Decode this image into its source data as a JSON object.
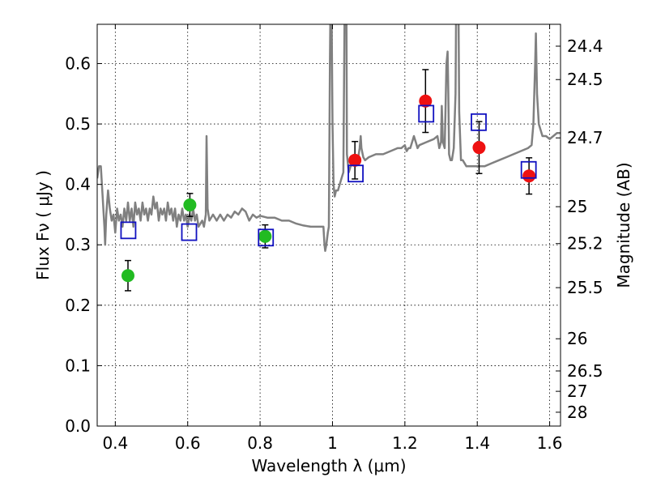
{
  "chart_data": {
    "type": "scatter",
    "title": "",
    "xlabel": "Wavelength  λ (μm)",
    "ylabel": "Flux  Fν  ( μJy )",
    "ylabel_right": "Magnitude (AB)",
    "xlim": [
      0.35,
      1.63
    ],
    "ylim": [
      0.0,
      0.665
    ],
    "grid": true,
    "grid_style": "dotted",
    "x_ticks": [
      0.4,
      0.6,
      0.8,
      1.0,
      1.2,
      1.4,
      1.6
    ],
    "x_tick_labels": [
      "0.4",
      "0.6",
      "0.8",
      "1",
      "1.2",
      "1.4",
      "1.6"
    ],
    "y_ticks": [
      0.0,
      0.1,
      0.2,
      0.3,
      0.4,
      0.5,
      0.6
    ],
    "y_tick_labels": [
      "0.0",
      "0.1",
      "0.2",
      "0.3",
      "0.4",
      "0.5",
      "0.6"
    ],
    "right_ticks": [
      {
        "label": "24.4",
        "flux": 0.6288
      },
      {
        "label": "24.5",
        "flux": 0.5735
      },
      {
        "label": "24.7",
        "flux": 0.477
      },
      {
        "label": "25",
        "flux": 0.3631
      },
      {
        "label": "25.2",
        "flux": 0.302
      },
      {
        "label": "25.5",
        "flux": 0.2291
      },
      {
        "label": "26",
        "flux": 0.1445
      },
      {
        "label": "26.5",
        "flux": 0.0912
      },
      {
        "label": "27",
        "flux": 0.0575
      },
      {
        "label": "28",
        "flux": 0.0229
      }
    ],
    "colors": {
      "sed": "#808080",
      "green": "#22bb22",
      "red": "#ee1111",
      "square": "#1010c0",
      "error": "#000000"
    },
    "series": [
      {
        "kind": "line",
        "points": [
          [
            0.35,
            0.41
          ],
          [
            0.355,
            0.43
          ],
          [
            0.36,
            0.43
          ],
          [
            0.365,
            0.38
          ],
          [
            0.37,
            0.33
          ],
          [
            0.372,
            0.3
          ],
          [
            0.375,
            0.35
          ],
          [
            0.38,
            0.39
          ],
          [
            0.385,
            0.36
          ],
          [
            0.39,
            0.34
          ],
          [
            0.395,
            0.35
          ],
          [
            0.4,
            0.32
          ],
          [
            0.405,
            0.36
          ],
          [
            0.41,
            0.34
          ],
          [
            0.415,
            0.35
          ],
          [
            0.42,
            0.33
          ],
          [
            0.425,
            0.36
          ],
          [
            0.43,
            0.34
          ],
          [
            0.435,
            0.37
          ],
          [
            0.44,
            0.34
          ],
          [
            0.445,
            0.36
          ],
          [
            0.45,
            0.33
          ],
          [
            0.455,
            0.37
          ],
          [
            0.46,
            0.35
          ],
          [
            0.465,
            0.36
          ],
          [
            0.47,
            0.34
          ],
          [
            0.475,
            0.37
          ],
          [
            0.48,
            0.35
          ],
          [
            0.485,
            0.36
          ],
          [
            0.49,
            0.34
          ],
          [
            0.495,
            0.36
          ],
          [
            0.5,
            0.35
          ],
          [
            0.505,
            0.38
          ],
          [
            0.51,
            0.36
          ],
          [
            0.515,
            0.37
          ],
          [
            0.52,
            0.34
          ],
          [
            0.525,
            0.36
          ],
          [
            0.53,
            0.35
          ],
          [
            0.535,
            0.36
          ],
          [
            0.54,
            0.34
          ],
          [
            0.545,
            0.37
          ],
          [
            0.55,
            0.35
          ],
          [
            0.555,
            0.36
          ],
          [
            0.56,
            0.34
          ],
          [
            0.565,
            0.36
          ],
          [
            0.57,
            0.33
          ],
          [
            0.575,
            0.35
          ],
          [
            0.58,
            0.34
          ],
          [
            0.585,
            0.36
          ],
          [
            0.59,
            0.34
          ],
          [
            0.595,
            0.35
          ],
          [
            0.6,
            0.33
          ],
          [
            0.605,
            0.35
          ],
          [
            0.61,
            0.34
          ],
          [
            0.615,
            0.36
          ],
          [
            0.62,
            0.34
          ],
          [
            0.625,
            0.35
          ],
          [
            0.63,
            0.33
          ],
          [
            0.64,
            0.34
          ],
          [
            0.645,
            0.33
          ],
          [
            0.65,
            0.35
          ],
          [
            0.652,
            0.48
          ],
          [
            0.655,
            0.36
          ],
          [
            0.66,
            0.34
          ],
          [
            0.67,
            0.35
          ],
          [
            0.68,
            0.34
          ],
          [
            0.69,
            0.35
          ],
          [
            0.7,
            0.34
          ],
          [
            0.71,
            0.35
          ],
          [
            0.72,
            0.345
          ],
          [
            0.73,
            0.355
          ],
          [
            0.74,
            0.35
          ],
          [
            0.75,
            0.36
          ],
          [
            0.76,
            0.355
          ],
          [
            0.77,
            0.34
          ],
          [
            0.78,
            0.35
          ],
          [
            0.79,
            0.345
          ],
          [
            0.8,
            0.348
          ],
          [
            0.82,
            0.345
          ],
          [
            0.84,
            0.345
          ],
          [
            0.86,
            0.34
          ],
          [
            0.88,
            0.34
          ],
          [
            0.9,
            0.335
          ],
          [
            0.92,
            0.332
          ],
          [
            0.94,
            0.33
          ],
          [
            0.96,
            0.33
          ],
          [
            0.975,
            0.33
          ],
          [
            0.978,
            0.3
          ],
          [
            0.98,
            0.29
          ],
          [
            0.983,
            0.3
          ],
          [
            0.987,
            0.32
          ],
          [
            0.99,
            0.33
          ],
          [
            0.993,
            0.6
          ],
          [
            0.996,
            0.8
          ],
          [
            1.0,
            0.5
          ],
          [
            1.003,
            0.4
          ],
          [
            1.006,
            0.38
          ],
          [
            1.01,
            0.39
          ],
          [
            1.015,
            0.39
          ],
          [
            1.02,
            0.4
          ],
          [
            1.025,
            0.41
          ],
          [
            1.03,
            0.42
          ],
          [
            1.035,
            0.8
          ],
          [
            1.038,
            0.78
          ],
          [
            1.04,
            0.45
          ],
          [
            1.045,
            0.42
          ],
          [
            1.05,
            0.43
          ],
          [
            1.06,
            0.435
          ],
          [
            1.07,
            0.44
          ],
          [
            1.075,
            0.46
          ],
          [
            1.078,
            0.48
          ],
          [
            1.08,
            0.46
          ],
          [
            1.085,
            0.445
          ],
          [
            1.09,
            0.44
          ],
          [
            1.1,
            0.445
          ],
          [
            1.12,
            0.45
          ],
          [
            1.14,
            0.45
          ],
          [
            1.16,
            0.455
          ],
          [
            1.18,
            0.46
          ],
          [
            1.19,
            0.46
          ],
          [
            1.2,
            0.465
          ],
          [
            1.205,
            0.455
          ],
          [
            1.21,
            0.46
          ],
          [
            1.215,
            0.46
          ],
          [
            1.22,
            0.47
          ],
          [
            1.225,
            0.48
          ],
          [
            1.23,
            0.47
          ],
          [
            1.235,
            0.46
          ],
          [
            1.24,
            0.465
          ],
          [
            1.26,
            0.47
          ],
          [
            1.28,
            0.475
          ],
          [
            1.29,
            0.48
          ],
          [
            1.295,
            0.46
          ],
          [
            1.3,
            0.47
          ],
          [
            1.302,
            0.53
          ],
          [
            1.305,
            0.47
          ],
          [
            1.31,
            0.46
          ],
          [
            1.315,
            0.6
          ],
          [
            1.318,
            0.62
          ],
          [
            1.32,
            0.55
          ],
          [
            1.322,
            0.45
          ],
          [
            1.326,
            0.44
          ],
          [
            1.33,
            0.44
          ],
          [
            1.335,
            0.46
          ],
          [
            1.34,
            0.55
          ],
          [
            1.343,
            0.8
          ],
          [
            1.347,
            0.8
          ],
          [
            1.35,
            0.52
          ],
          [
            1.355,
            0.44
          ],
          [
            1.36,
            0.44
          ],
          [
            1.37,
            0.43
          ],
          [
            1.38,
            0.43
          ],
          [
            1.4,
            0.43
          ],
          [
            1.42,
            0.43
          ],
          [
            1.44,
            0.435
          ],
          [
            1.46,
            0.44
          ],
          [
            1.48,
            0.445
          ],
          [
            1.5,
            0.45
          ],
          [
            1.52,
            0.455
          ],
          [
            1.54,
            0.46
          ],
          [
            1.55,
            0.465
          ],
          [
            1.555,
            0.5
          ],
          [
            1.56,
            0.6
          ],
          [
            1.562,
            0.65
          ],
          [
            1.565,
            0.55
          ],
          [
            1.57,
            0.5
          ],
          [
            1.58,
            0.48
          ],
          [
            1.59,
            0.48
          ],
          [
            1.6,
            0.475
          ],
          [
            1.61,
            0.48
          ],
          [
            1.62,
            0.485
          ],
          [
            1.63,
            0.485
          ]
        ]
      },
      {
        "kind": "points",
        "marker": "green-circle",
        "points": [
          {
            "x": 0.435,
            "y": 0.249,
            "yerr": 0.025
          },
          {
            "x": 0.606,
            "y": 0.366,
            "yerr": 0.019
          },
          {
            "x": 0.814,
            "y": 0.314,
            "yerr": 0.019
          }
        ]
      },
      {
        "kind": "points",
        "marker": "red-circle",
        "points": [
          {
            "x": 1.062,
            "y": 0.44,
            "yerr": 0.031
          },
          {
            "x": 1.257,
            "y": 0.538,
            "yerr": 0.052
          },
          {
            "x": 1.405,
            "y": 0.461,
            "yerr": 0.043
          },
          {
            "x": 1.543,
            "y": 0.414,
            "yerr": 0.03
          }
        ]
      },
      {
        "kind": "points",
        "marker": "blue-square",
        "points": [
          {
            "x": 0.436,
            "y": 0.324
          },
          {
            "x": 0.604,
            "y": 0.321
          },
          {
            "x": 0.816,
            "y": 0.312
          },
          {
            "x": 1.064,
            "y": 0.418
          },
          {
            "x": 1.259,
            "y": 0.517
          },
          {
            "x": 1.404,
            "y": 0.503
          },
          {
            "x": 1.542,
            "y": 0.424
          }
        ]
      }
    ]
  }
}
